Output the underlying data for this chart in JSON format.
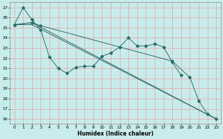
{
  "title": "",
  "xlabel": "Humidex (Indice chaleur)",
  "bg_color": "#c8ecec",
  "grid_color": "#e8a0a0",
  "line_color": "#2d6b6b",
  "xlim": [
    -0.5,
    23.5
  ],
  "ylim": [
    15.5,
    27.5
  ],
  "xticks": [
    0,
    1,
    2,
    3,
    4,
    5,
    6,
    7,
    8,
    9,
    10,
    11,
    12,
    13,
    14,
    15,
    16,
    17,
    18,
    19,
    20,
    21,
    22,
    23
  ],
  "yticks": [
    16,
    17,
    18,
    19,
    20,
    21,
    22,
    23,
    24,
    25,
    26,
    27
  ],
  "series": [
    {
      "x": [
        0,
        1,
        2,
        3,
        4,
        5,
        6,
        7,
        8,
        9,
        10,
        11,
        12,
        13,
        14,
        15,
        16,
        17,
        18,
        19
      ],
      "y": [
        25.3,
        27.0,
        25.8,
        24.8,
        22.1,
        21.0,
        20.5,
        21.1,
        21.2,
        21.2,
        22.2,
        22.5,
        23.1,
        24.0,
        23.2,
        23.2,
        23.4,
        23.1,
        21.6,
        20.3
      ],
      "marker": true
    },
    {
      "x": [
        0,
        2,
        23
      ],
      "y": [
        25.3,
        25.3,
        16.0
      ],
      "marker": false
    },
    {
      "x": [
        0,
        2,
        3,
        18,
        20,
        21,
        22,
        23
      ],
      "y": [
        25.3,
        25.5,
        25.2,
        21.7,
        20.1,
        17.8,
        16.5,
        16.0
      ],
      "marker": true
    },
    {
      "x": [
        0,
        2,
        23
      ],
      "y": [
        25.3,
        25.5,
        16.0
      ],
      "marker": false
    }
  ]
}
